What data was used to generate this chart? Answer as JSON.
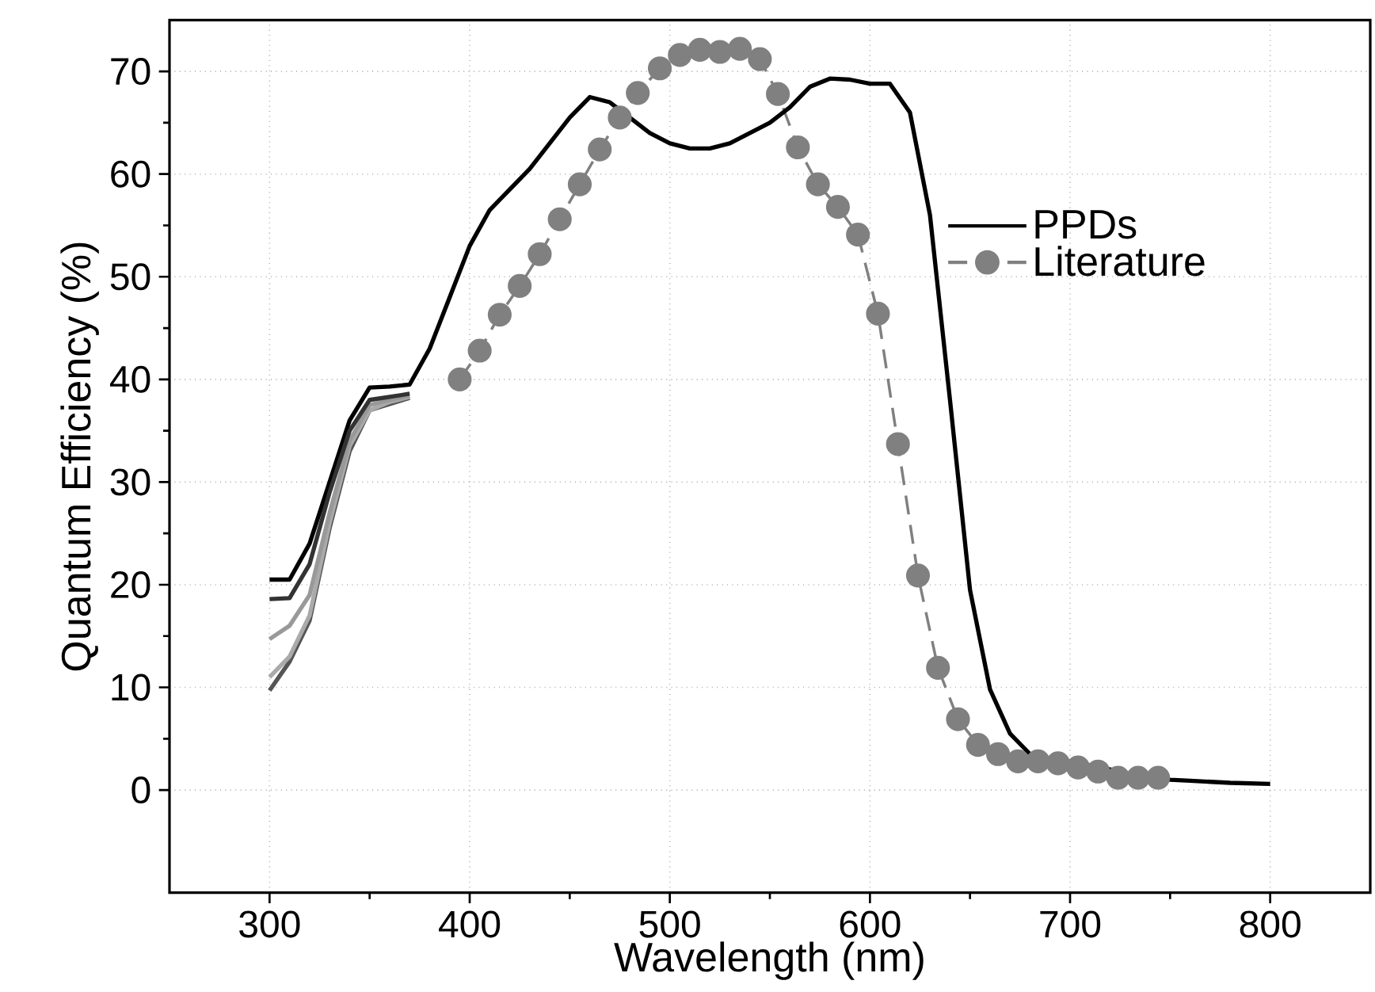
{
  "chart_data": {
    "type": "line",
    "xlabel": "Wavelength (nm)",
    "ylabel": "Quantum Efficiency (%)",
    "xlim": [
      250,
      850
    ],
    "ylim": [
      -10,
      75
    ],
    "xticks": [
      300,
      400,
      500,
      600,
      700,
      800
    ],
    "yticks": [
      0,
      10,
      20,
      30,
      40,
      50,
      60,
      70
    ],
    "grid": true,
    "legend": "top right",
    "line_style": "solid",
    "series": [
      {
        "color": "#333333",
        "x": [
          300,
          310,
          320,
          330,
          340,
          350,
          360,
          370
        ],
        "values": [
          18.6,
          18.7,
          22,
          29,
          35,
          38,
          38.3,
          38.6
        ]
      },
      {
        "color": "#999999",
        "x": [
          300,
          310,
          320,
          330,
          340,
          350,
          360,
          370
        ],
        "values": [
          14.7,
          16,
          19,
          27,
          34,
          37.5,
          38,
          38.4
        ]
      },
      {
        "color": "#aaaaaa",
        "x": [
          300,
          310,
          320,
          330,
          340,
          350,
          360,
          370
        ],
        "values": [
          11,
          13,
          17,
          26,
          33.5,
          37,
          37.8,
          38.3
        ]
      },
      {
        "color": "#555555",
        "x": [
          300,
          310,
          320,
          330,
          340,
          350,
          360,
          370
        ],
        "values": [
          9.7,
          12.5,
          16.5,
          25.5,
          33,
          37,
          37.6,
          38.2
        ]
      },
      {
        "name": "PPDs",
        "color": "#000000",
        "x": [
          300,
          310,
          320,
          330,
          340,
          350,
          360,
          370,
          380,
          390,
          400,
          410,
          420,
          430,
          440,
          450,
          460,
          470,
          480,
          490,
          500,
          510,
          520,
          530,
          540,
          550,
          560,
          570,
          580,
          590,
          600,
          610,
          620,
          630,
          640,
          650,
          660,
          670,
          680,
          690,
          700,
          710,
          720,
          730,
          740,
          750,
          760,
          780,
          800
        ],
        "values": [
          20.5,
          20.5,
          24,
          30,
          36,
          39.2,
          39.3,
          39.5,
          43,
          48,
          53,
          56.5,
          58.5,
          60.5,
          63,
          65.5,
          67.5,
          67,
          65.5,
          64,
          63,
          62.5,
          62.5,
          63,
          64,
          65,
          66.5,
          68.5,
          69.3,
          69.2,
          68.8,
          68.8,
          66,
          56,
          38,
          19.5,
          9.8,
          5.5,
          3.5,
          3,
          2.8,
          2.4,
          2,
          1.5,
          1.2,
          1,
          0.9,
          0.7,
          0.6
        ]
      },
      {
        "name": "Literature",
        "color": "#808080",
        "line_style": "dashed",
        "marker": "circle",
        "x": [
          395,
          405,
          415,
          425,
          435,
          445,
          455,
          465,
          475,
          484,
          495,
          505,
          515,
          525,
          535,
          545,
          554,
          564,
          574,
          584,
          594,
          604,
          614,
          624,
          634,
          644,
          654,
          664,
          674,
          684,
          694,
          704,
          714,
          724,
          734,
          744
        ],
        "values": [
          40,
          42.8,
          46.3,
          49.1,
          52.2,
          55.6,
          59,
          62.4,
          65.5,
          67.9,
          70.3,
          71.6,
          72.1,
          71.9,
          72.2,
          71.2,
          67.8,
          62.6,
          59,
          56.8,
          54.1,
          46.4,
          33.7,
          20.9,
          11.9,
          6.9,
          4.4,
          3.5,
          2.8,
          2.8,
          2.6,
          2.2,
          1.8,
          1.2,
          1.2,
          1.2
        ]
      }
    ]
  }
}
